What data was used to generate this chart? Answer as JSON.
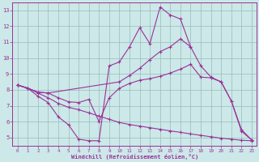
{
  "xlabel": "Windchill (Refroidissement éolien,°C)",
  "background_color": "#cce8e8",
  "line_color": "#993399",
  "grid_color": "#99bbbb",
  "xlim": [
    -0.5,
    23.5
  ],
  "ylim": [
    4.5,
    13.5
  ],
  "xticks": [
    0,
    1,
    2,
    3,
    4,
    5,
    6,
    7,
    8,
    9,
    10,
    11,
    12,
    13,
    14,
    15,
    16,
    17,
    18,
    19,
    20,
    21,
    22,
    23
  ],
  "yticks": [
    5,
    6,
    7,
    8,
    9,
    10,
    11,
    12,
    13
  ],
  "lines": [
    {
      "x": [
        0,
        1,
        2,
        3,
        4,
        5,
        6,
        7,
        8,
        9,
        10,
        11,
        12,
        13,
        14,
        15,
        16,
        17
      ],
      "y": [
        8.3,
        8.1,
        7.6,
        7.2,
        6.3,
        5.8,
        4.9,
        4.8,
        4.8,
        9.5,
        9.75,
        10.7,
        11.9,
        10.9,
        13.2,
        12.7,
        12.45,
        10.7
      ]
    },
    {
      "x": [
        0,
        1,
        2,
        3,
        10,
        11,
        12,
        13,
        14,
        15,
        16,
        17,
        18,
        19,
        20,
        21,
        22,
        23
      ],
      "y": [
        8.3,
        8.1,
        7.85,
        7.8,
        8.5,
        8.9,
        9.35,
        9.9,
        10.4,
        10.7,
        11.2,
        10.7,
        9.5,
        8.8,
        8.5,
        7.3,
        5.4,
        4.85
      ]
    },
    {
      "x": [
        0,
        1,
        2,
        3,
        4,
        5,
        6,
        7,
        8,
        9,
        10,
        11,
        12,
        13,
        14,
        15,
        16,
        17,
        18,
        19,
        20,
        21,
        22,
        23
      ],
      "y": [
        8.3,
        8.1,
        7.85,
        7.8,
        7.5,
        7.25,
        7.2,
        7.4,
        6.0,
        7.5,
        8.1,
        8.4,
        8.6,
        8.7,
        8.85,
        9.05,
        9.3,
        9.6,
        8.8,
        8.75,
        8.5,
        7.3,
        5.5,
        4.85
      ]
    },
    {
      "x": [
        0,
        1,
        2,
        3,
        4,
        5,
        6,
        7,
        8,
        9,
        10,
        11,
        12,
        13,
        14,
        15,
        16,
        17,
        18,
        19,
        20,
        21,
        22,
        23
      ],
      "y": [
        8.3,
        8.1,
        7.8,
        7.5,
        7.15,
        6.9,
        6.75,
        6.55,
        6.35,
        6.15,
        5.95,
        5.82,
        5.72,
        5.62,
        5.52,
        5.42,
        5.33,
        5.23,
        5.14,
        5.05,
        4.96,
        4.9,
        4.83,
        4.8
      ]
    }
  ]
}
